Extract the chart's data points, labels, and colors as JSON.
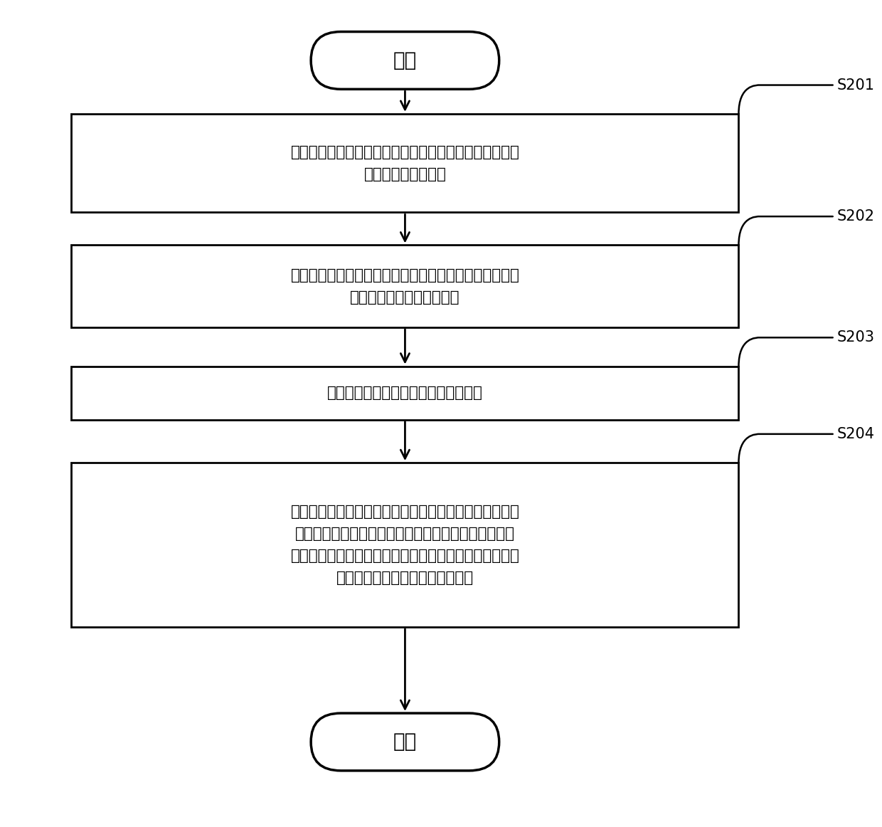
{
  "bg_color": "#ffffff",
  "border_color": "#000000",
  "text_color": "#000000",
  "arrow_color": "#000000",
  "label_color": "#000000",
  "start_text": "开始",
  "end_text": "结束",
  "box1_text": "运行主系统并启用第一屏幕以显示主系统的界面、以及在\n主系统下运行的应用",
  "box2_text": "检测移动终端的剩余电量是否小于第二预设门限；若是，\n则获取用户的应用启动指令",
  "box3_text": "仅刷新与所述应用启动指令对应的应用",
  "box4_text": "检测移动终端的剩余电量是否小于第一预设门限；若是，\n则停用主系统及第一屏幕、运行能耗低于主系统的副系\n统、并启用能耗低于第一屏幕的第二屏幕以显示副系统的\n界面、以及在副系统下运行的应用",
  "labels": [
    "S201",
    "S202",
    "S203",
    "S204"
  ],
  "figsize": [
    12.4,
    11.62
  ],
  "dpi": 100
}
